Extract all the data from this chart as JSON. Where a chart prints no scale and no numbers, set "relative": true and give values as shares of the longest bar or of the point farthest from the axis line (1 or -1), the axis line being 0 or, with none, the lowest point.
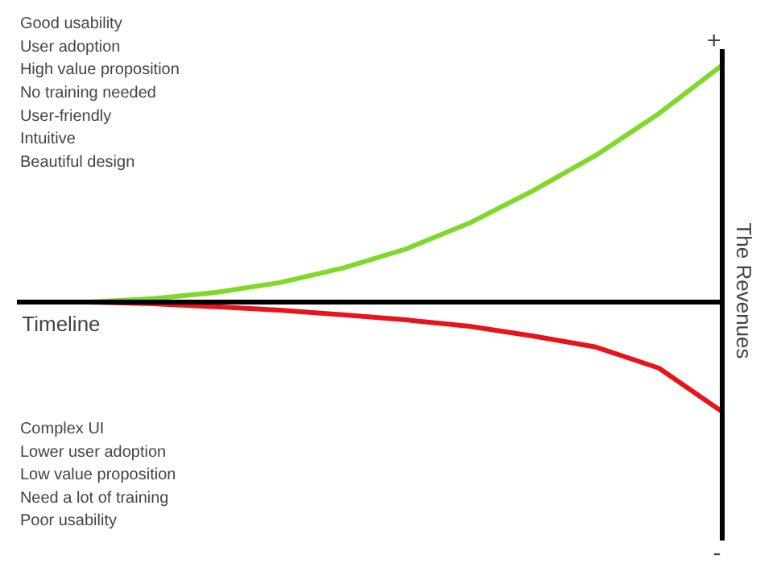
{
  "chart_data": {
    "type": "line",
    "relative": true,
    "xlabel": "Timeline",
    "ylabel": "The Revenues",
    "categories": [
      null,
      null,
      null,
      null,
      null,
      null,
      null,
      null,
      null,
      null,
      null
    ],
    "series": [
      {
        "color": "#80d92a",
        "values": [
          0,
          0.014,
          0.041,
          0.082,
          0.143,
          0.224,
          0.333,
          0.469,
          0.619,
          0.796,
          1
        ]
      },
      {
        "color": "#e8141b",
        "values": [
          0,
          -0.007,
          -0.02,
          -0.034,
          -0.054,
          -0.075,
          -0.102,
          -0.143,
          -0.19,
          -0.279,
          -0.463
        ]
      }
    ],
    "annotations": [
      "Good usability\nUser adoption\nHigh value proposition\nNo training needed\nUser-friendly\nIntuitive\nBeautiful design",
      "Complex UI\nLower user adoption\nLow value proposition\nNeed a lot of training\nPoor usability",
      "+",
      "-"
    ]
  }
}
